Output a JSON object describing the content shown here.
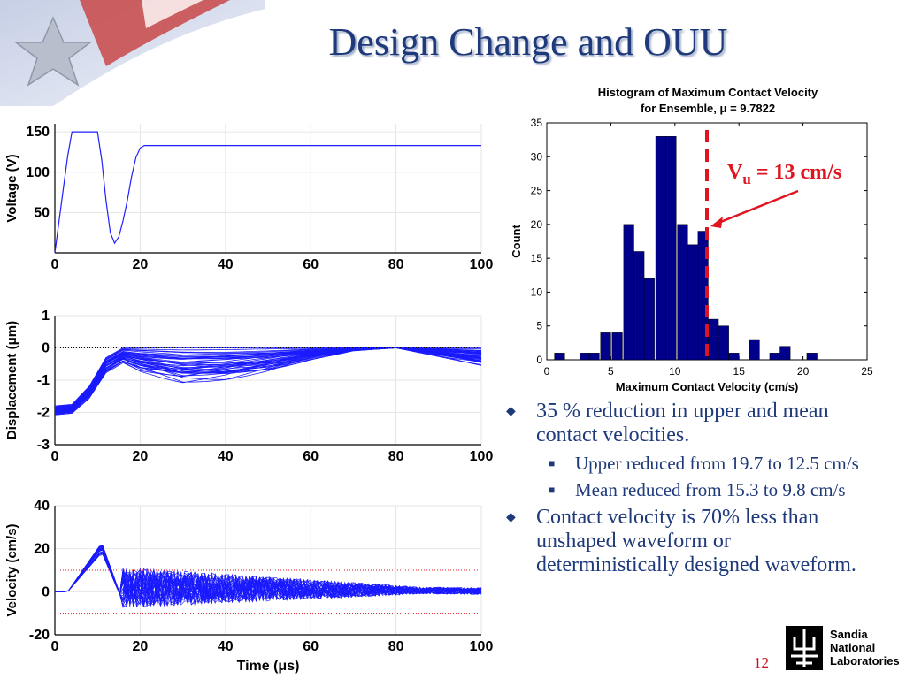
{
  "slide": {
    "title": "Design Change and OUU",
    "page_number": "12",
    "logo": {
      "lines": [
        "Sandia",
        "National",
        "Laboratories"
      ]
    }
  },
  "bullets": [
    {
      "text": "35 % reduction in upper and mean contact velocities.",
      "sub": [
        "Upper reduced from 19.7 to 12.5 cm/s",
        "Mean reduced from 15.3 to 9.8 cm/s"
      ]
    },
    {
      "text": "Contact velocity is 70% less than unshaped waveform or deterministically designed waveform.",
      "sub": []
    }
  ],
  "chart_data": [
    {
      "type": "line",
      "ylabel": "Voltage (V)",
      "xlim": [
        0,
        100
      ],
      "ylim": [
        0,
        160
      ],
      "xticks": [
        "0",
        "20",
        "40",
        "60",
        "80",
        "100"
      ],
      "yticks": [
        "50",
        "100",
        "150"
      ],
      "series": [
        {
          "x": [
            0,
            1,
            2,
            3,
            4,
            5,
            10,
            11,
            12,
            13,
            14,
            15,
            16,
            17,
            18,
            19,
            20,
            21,
            22,
            100
          ],
          "y": [
            0,
            40,
            80,
            120,
            150,
            150,
            150,
            115,
            65,
            25,
            12,
            20,
            40,
            65,
            95,
            118,
            130,
            133,
            133,
            133
          ],
          "color": "#2020ff"
        }
      ]
    },
    {
      "type": "line",
      "ylabel": "Displacement (μm)",
      "xlim": [
        0,
        100
      ],
      "ylim": [
        -3,
        1
      ],
      "xticks": [
        "0",
        "20",
        "40",
        "60",
        "80",
        "100"
      ],
      "yticks": [
        "1",
        "0",
        "-1",
        "-2",
        "-3"
      ],
      "reference_line": 0,
      "series_count": 40,
      "envelope": {
        "x": [
          0,
          4,
          8,
          12,
          16,
          20,
          30,
          40,
          50,
          60,
          70,
          80,
          90,
          100
        ],
        "upper": [
          -1.8,
          -1.75,
          -1.2,
          -0.3,
          0,
          0,
          0,
          0,
          0,
          0,
          0,
          0,
          0,
          0
        ],
        "lower": [
          -2.1,
          -2.05,
          -1.6,
          -0.8,
          -0.5,
          -0.8,
          -1.2,
          -1.1,
          -0.8,
          -0.4,
          -0.1,
          0,
          -0.3,
          -0.6
        ]
      }
    },
    {
      "type": "line",
      "xlabel": "Time (μs)",
      "ylabel": "Velocity (cm/s)",
      "xlim": [
        0,
        100
      ],
      "ylim": [
        -20,
        40
      ],
      "xticks": [
        "0",
        "20",
        "40",
        "60",
        "80",
        "100"
      ],
      "yticks": [
        "40",
        "20",
        "0",
        "-20"
      ],
      "threshold_lines": [
        10,
        -10
      ],
      "series_count": 40,
      "peak": {
        "x": 11,
        "y_range": [
          18,
          23
        ]
      },
      "noise_amplitude_start": 12,
      "noise_amplitude_end": 2
    },
    {
      "type": "bar",
      "title": "Histogram of Maximum Contact Velocity",
      "subtitle": "for Ensemble, μ = 9.7822",
      "xlabel": "Maximum Contact Velocity (cm/s)",
      "ylabel": "Count",
      "xlim": [
        0,
        25
      ],
      "ylim": [
        0,
        35
      ],
      "xticks": [
        "0",
        "5",
        "10",
        "15",
        "20",
        "25"
      ],
      "yticks": [
        "0",
        "5",
        "10",
        "15",
        "20",
        "25",
        "30",
        "35"
      ],
      "bin_width": 0.8,
      "bins": [
        {
          "x": 1.0,
          "count": 1
        },
        {
          "x": 3.0,
          "count": 1
        },
        {
          "x": 3.7,
          "count": 1
        },
        {
          "x": 4.6,
          "count": 4
        },
        {
          "x": 5.5,
          "count": 4
        },
        {
          "x": 6.4,
          "count": 20
        },
        {
          "x": 7.2,
          "count": 16
        },
        {
          "x": 8.0,
          "count": 12
        },
        {
          "x": 8.9,
          "count": 33
        },
        {
          "x": 9.7,
          "count": 33
        },
        {
          "x": 10.6,
          "count": 20
        },
        {
          "x": 11.4,
          "count": 17
        },
        {
          "x": 12.2,
          "count": 19
        },
        {
          "x": 13.0,
          "count": 6
        },
        {
          "x": 13.8,
          "count": 5
        },
        {
          "x": 14.6,
          "count": 1
        },
        {
          "x": 16.2,
          "count": 3
        },
        {
          "x": 17.8,
          "count": 1
        },
        {
          "x": 18.6,
          "count": 2
        },
        {
          "x": 20.7,
          "count": 1
        }
      ],
      "bar_color": "#00008b",
      "marker_line": {
        "x": 12.5,
        "color": "#e0141e"
      },
      "annotation": {
        "text_main": "V",
        "text_sub": "u",
        "text_rest": " = 13 cm/s",
        "color": "#e0141e"
      }
    }
  ]
}
